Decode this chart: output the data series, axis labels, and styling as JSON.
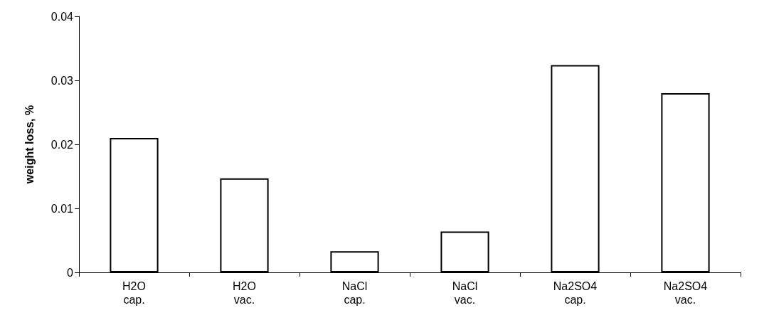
{
  "chart_data": {
    "type": "bar",
    "ylabel": "weight loss, %",
    "categories": [
      "H2O\ncap.",
      "H2O\nvac.",
      "NaCl\ncap.",
      "NaCl\nvac.",
      "Na2SO4\ncap.",
      "Na2SO4\nvac."
    ],
    "values": [
      0.021,
      0.0147,
      0.0033,
      0.0064,
      0.0324,
      0.028
    ],
    "color": "#ffffff",
    "ylim": [
      0,
      0.04
    ],
    "yticks": [
      0,
      0.01,
      0.02,
      0.03,
      0.04
    ],
    "grid": false
  }
}
